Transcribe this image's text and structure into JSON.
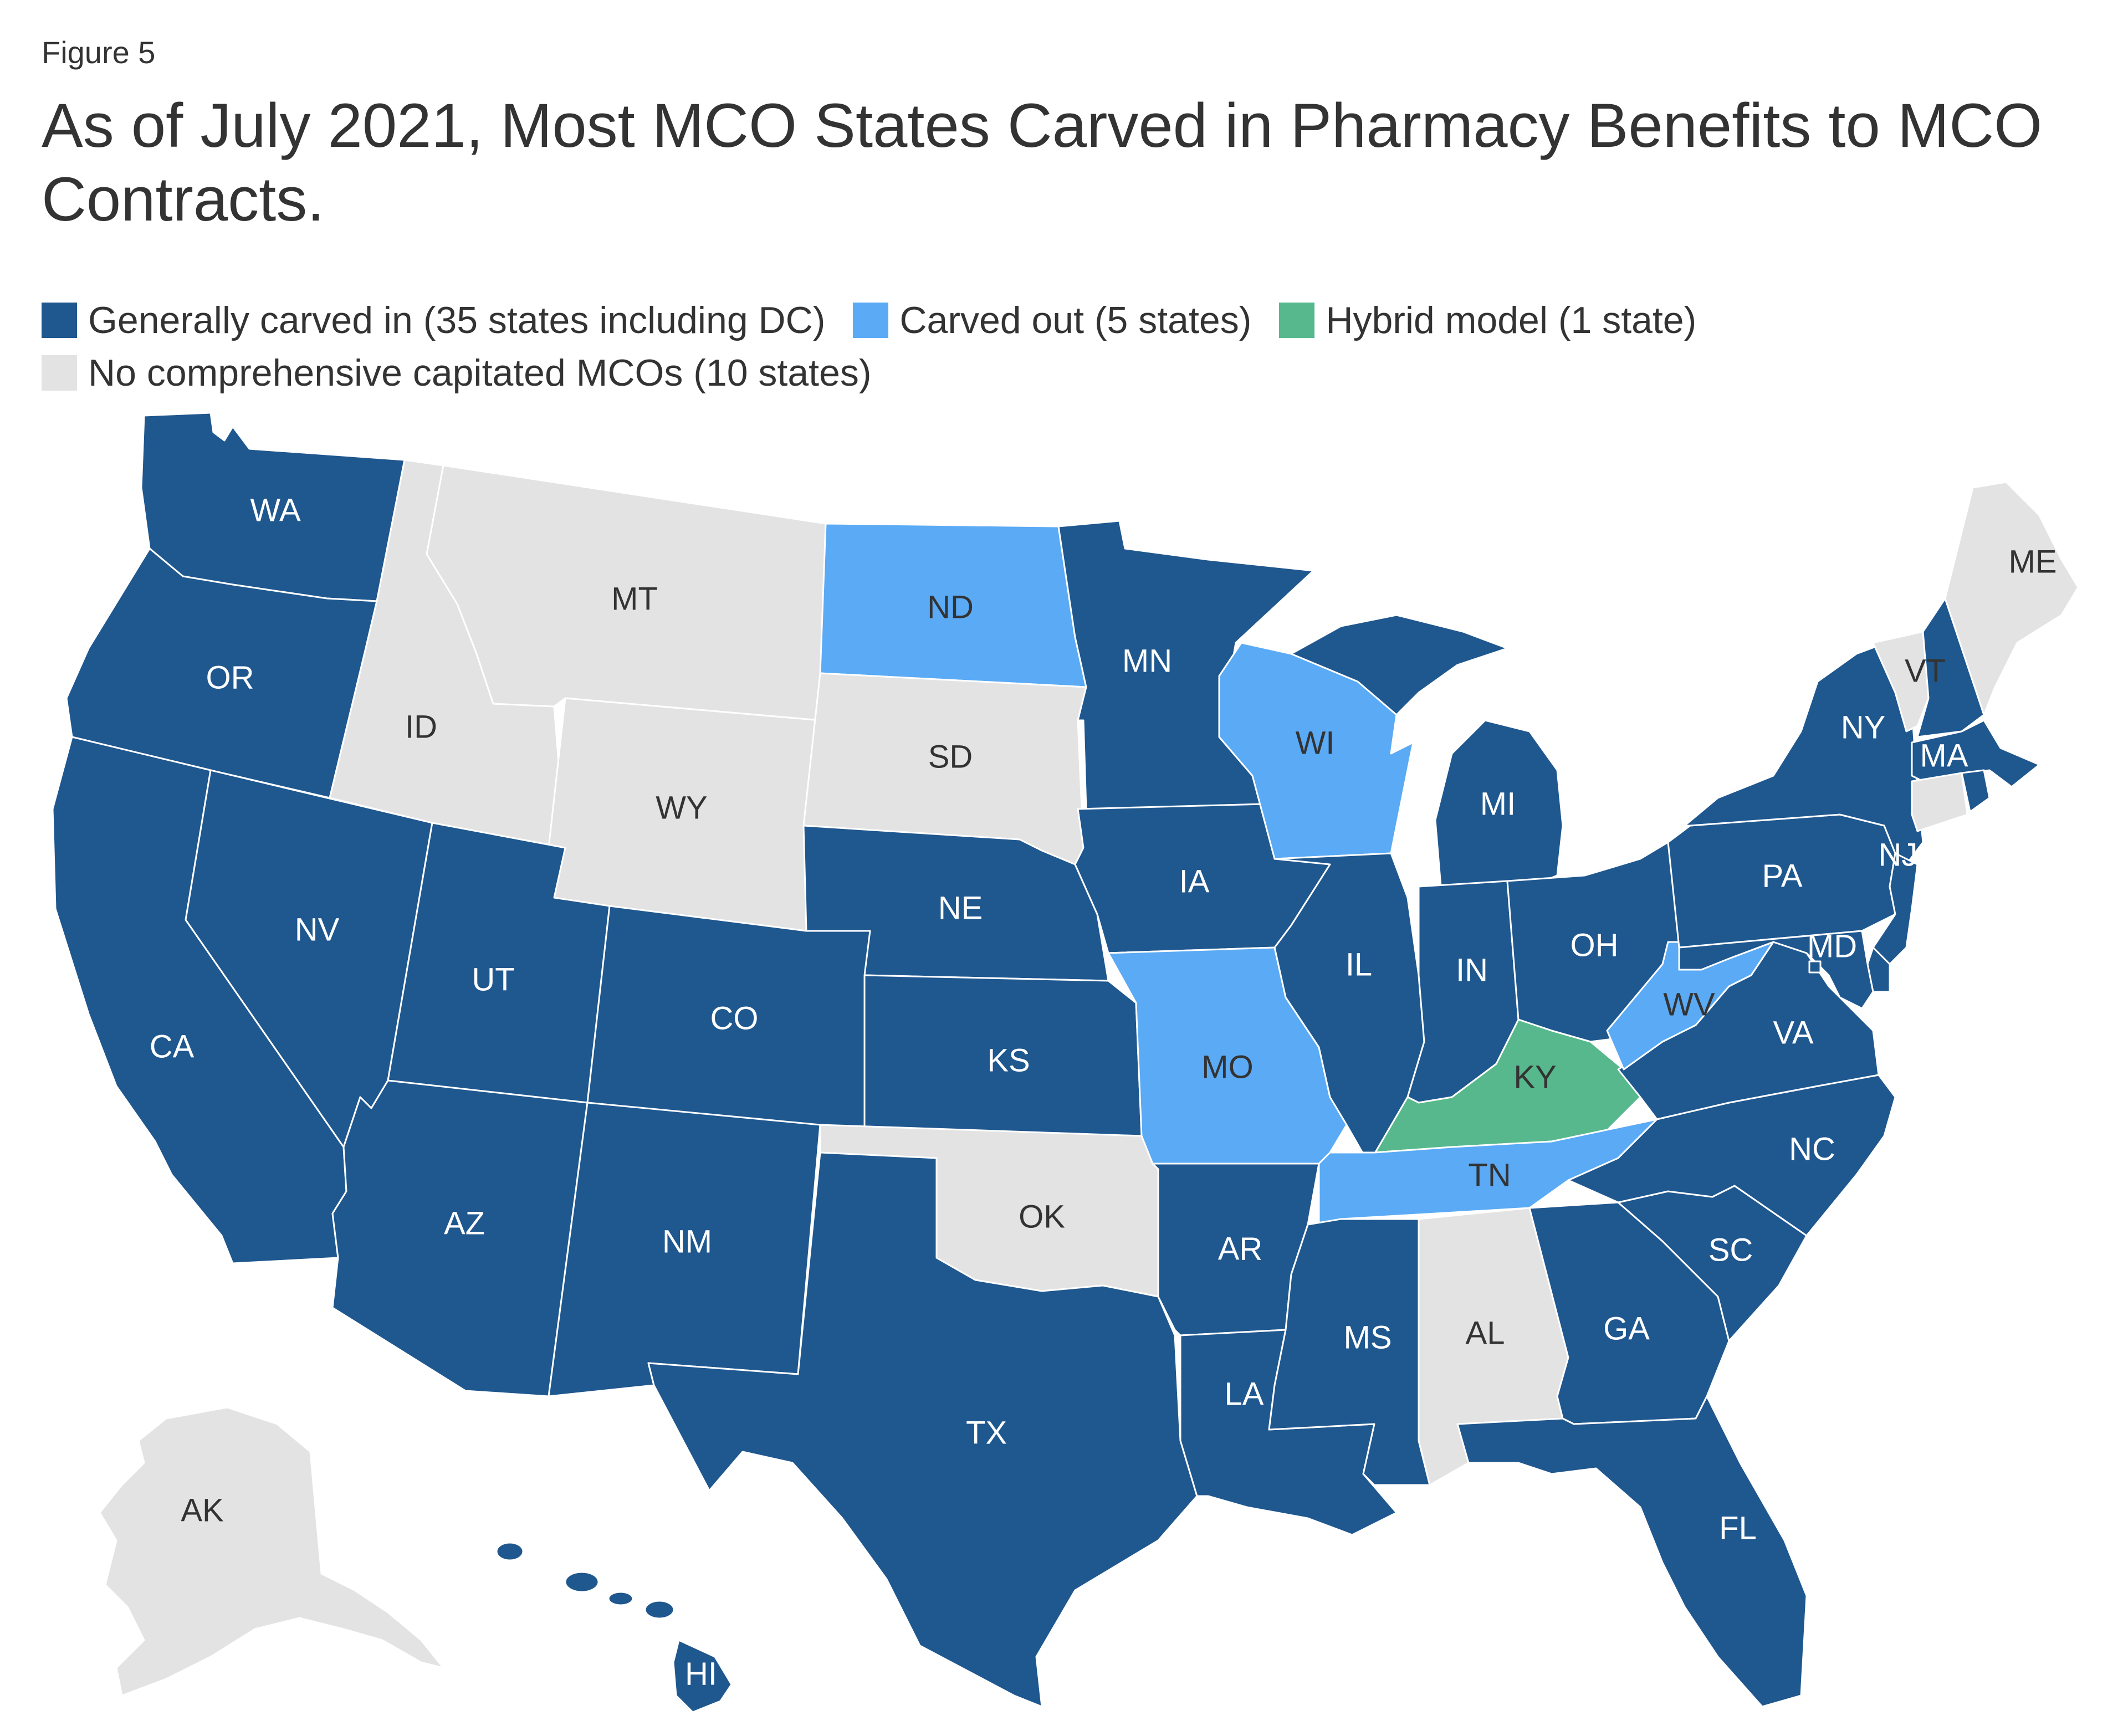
{
  "figure_label": "Figure 5",
  "title": "As of July 2021, Most MCO States Carved in Pharmacy Benefits to MCO Contracts.",
  "legend": [
    {
      "key": "carved_in",
      "label": "Generally carved in (35 states including DC)",
      "color": "#1F578F"
    },
    {
      "key": "carved_out",
      "label": "Carved out (5 states)",
      "color": "#5AAAF5"
    },
    {
      "key": "hybrid",
      "label": "Hybrid model (1 state)",
      "color": "#56B88C"
    },
    {
      "key": "none",
      "label": "No comprehensive capitated MCOs (10 states)",
      "color": "#E3E3E3"
    }
  ],
  "chart_data": {
    "type": "choropleth",
    "title": "As of July 2021, Most MCO States Carved in Pharmacy Benefits to MCO Contracts.",
    "categories": {
      "carved_in": "Generally carved in (35 states including DC)",
      "carved_out": "Carved out (5 states)",
      "hybrid": "Hybrid model (1 state)",
      "none": "No comprehensive capitated MCOs (10 states)"
    },
    "states": [
      {
        "abbr": "WA",
        "status": "carved_in"
      },
      {
        "abbr": "OR",
        "status": "carved_in"
      },
      {
        "abbr": "CA",
        "status": "carved_in"
      },
      {
        "abbr": "NV",
        "status": "carved_in"
      },
      {
        "abbr": "ID",
        "status": "none"
      },
      {
        "abbr": "MT",
        "status": "none"
      },
      {
        "abbr": "WY",
        "status": "none"
      },
      {
        "abbr": "UT",
        "status": "carved_in"
      },
      {
        "abbr": "AZ",
        "status": "carved_in"
      },
      {
        "abbr": "CO",
        "status": "carved_in"
      },
      {
        "abbr": "NM",
        "status": "carved_in"
      },
      {
        "abbr": "ND",
        "status": "carved_out"
      },
      {
        "abbr": "SD",
        "status": "none"
      },
      {
        "abbr": "NE",
        "status": "carved_in"
      },
      {
        "abbr": "KS",
        "status": "carved_in"
      },
      {
        "abbr": "OK",
        "status": "none"
      },
      {
        "abbr": "TX",
        "status": "carved_in"
      },
      {
        "abbr": "MN",
        "status": "carved_in"
      },
      {
        "abbr": "IA",
        "status": "carved_in"
      },
      {
        "abbr": "MO",
        "status": "carved_out"
      },
      {
        "abbr": "AR",
        "status": "carved_in"
      },
      {
        "abbr": "LA",
        "status": "carved_in"
      },
      {
        "abbr": "WI",
        "status": "carved_out"
      },
      {
        "abbr": "IL",
        "status": "carved_in"
      },
      {
        "abbr": "MI",
        "status": "carved_in"
      },
      {
        "abbr": "IN",
        "status": "carved_in"
      },
      {
        "abbr": "OH",
        "status": "carved_in"
      },
      {
        "abbr": "KY",
        "status": "hybrid"
      },
      {
        "abbr": "TN",
        "status": "carved_out"
      },
      {
        "abbr": "MS",
        "status": "carved_in"
      },
      {
        "abbr": "AL",
        "status": "none"
      },
      {
        "abbr": "GA",
        "status": "carved_in"
      },
      {
        "abbr": "FL",
        "status": "carved_in"
      },
      {
        "abbr": "SC",
        "status": "carved_in"
      },
      {
        "abbr": "NC",
        "status": "carved_in"
      },
      {
        "abbr": "VA",
        "status": "carved_in"
      },
      {
        "abbr": "WV",
        "status": "carved_out"
      },
      {
        "abbr": "PA",
        "status": "carved_in"
      },
      {
        "abbr": "NY",
        "status": "carved_in"
      },
      {
        "abbr": "NJ",
        "status": "carved_in"
      },
      {
        "abbr": "MD",
        "status": "carved_in"
      },
      {
        "abbr": "DE",
        "status": "carved_in"
      },
      {
        "abbr": "DC",
        "status": "carved_in"
      },
      {
        "abbr": "VT",
        "status": "none"
      },
      {
        "abbr": "NH",
        "status": "carved_in"
      },
      {
        "abbr": "ME",
        "status": "none"
      },
      {
        "abbr": "MA",
        "status": "carved_in"
      },
      {
        "abbr": "RI",
        "status": "carved_in"
      },
      {
        "abbr": "CT",
        "status": "none"
      },
      {
        "abbr": "AK",
        "status": "none"
      },
      {
        "abbr": "HI",
        "status": "carved_in"
      }
    ]
  }
}
